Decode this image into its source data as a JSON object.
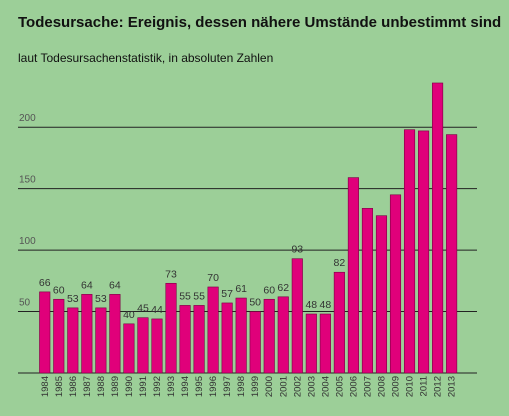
{
  "chart_data": {
    "type": "bar",
    "title": "Todesursache: Ereignis, dessen nähere Umstände unbestimmt sind",
    "subtitle": "laut Todesursachenstatistik, in absoluten Zahlen",
    "xlabel": "",
    "ylabel": "",
    "ylim": [
      0,
      225
    ],
    "yticks": [
      50,
      100,
      150,
      200
    ],
    "grid": true,
    "categories": [
      "1984",
      "1985",
      "1986",
      "1987",
      "1988",
      "1989",
      "1990",
      "1991",
      "1992",
      "1993",
      "1994",
      "1995",
      "1996",
      "1997",
      "1998",
      "1999",
      "2000",
      "2001",
      "2002",
      "2003",
      "2004",
      "2005",
      "2006",
      "2007",
      "2008",
      "2009",
      "2010",
      "2011",
      "2012",
      "2013"
    ],
    "values": [
      66,
      60,
      53,
      64,
      53,
      64,
      40,
      45,
      44,
      73,
      55,
      55,
      70,
      57,
      61,
      50,
      60,
      62,
      93,
      48,
      48,
      82,
      159,
      134,
      128,
      145,
      198,
      197,
      236,
      194
    ],
    "data_labels": [
      "66",
      "60",
      "53",
      "64",
      "53",
      "64",
      "40",
      "45",
      "44",
      "73",
      "55",
      "55",
      "70",
      "57",
      "61",
      "50",
      "60",
      "62",
      "93",
      "48",
      "48",
      "82",
      "",
      "",
      "",
      "",
      "",
      "",
      "",
      ""
    ],
    "bar_color": "#e0007a",
    "background_color": "#9ccf98"
  }
}
